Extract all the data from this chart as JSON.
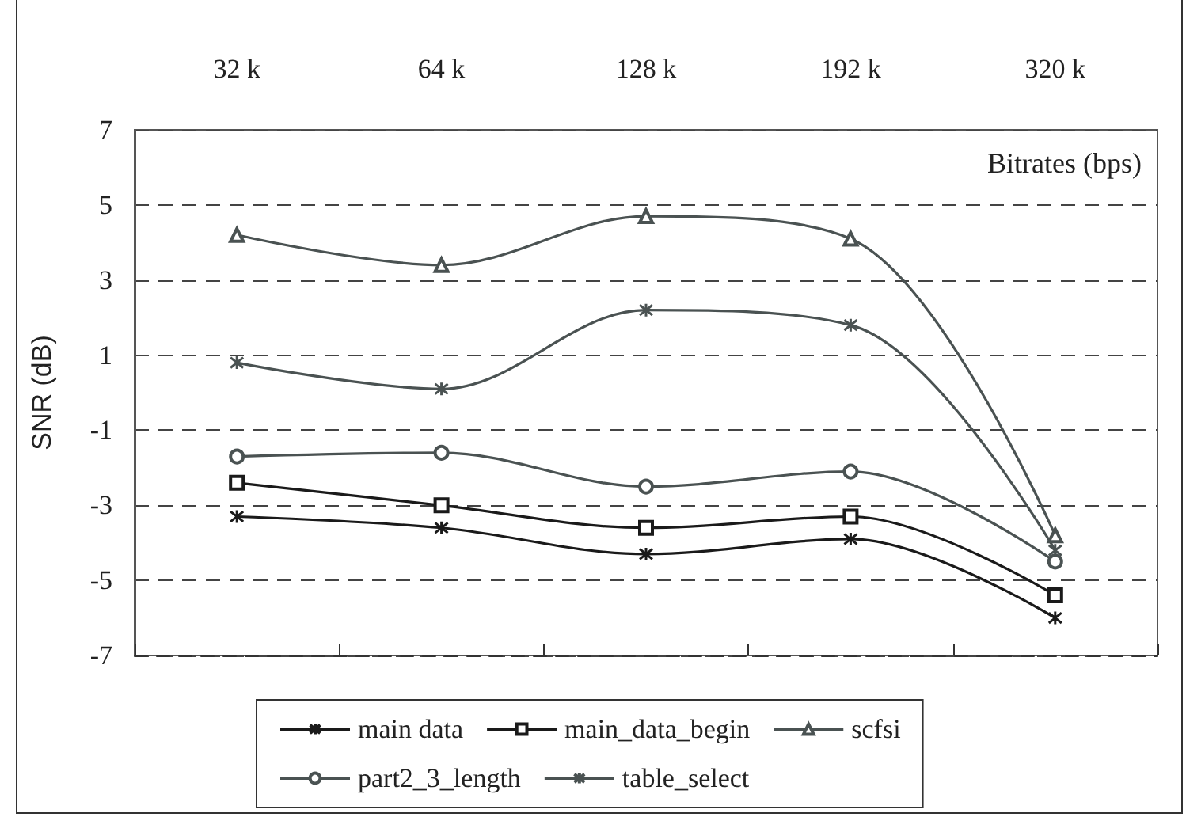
{
  "chart_data": {
    "type": "line",
    "xlabel": "Bitrates (bps)",
    "ylabel": "SNR (dB)",
    "categories": [
      "32 k",
      "64 k",
      "128 k",
      "192 k",
      "320 k"
    ],
    "ylim": [
      -7,
      7
    ],
    "yticks": [
      -7,
      -5,
      -3,
      -1,
      1,
      3,
      5,
      7
    ],
    "grid": "y",
    "legend": "bottom",
    "line_style": "solid",
    "series": [
      {
        "name": "main data",
        "color": "#1a1a1a",
        "marker": "cross",
        "values": [
          -3.3,
          -3.6,
          -4.3,
          -3.9,
          -6.0
        ]
      },
      {
        "name": "main_data_begin",
        "color": "#1a1a1a",
        "marker": "square",
        "values": [
          -2.4,
          -3.0,
          -3.6,
          -3.3,
          -5.4
        ]
      },
      {
        "name": "scfsi",
        "color": "#4a5252",
        "marker": "triangle",
        "values": [
          4.2,
          3.4,
          4.7,
          4.1,
          -3.8
        ]
      },
      {
        "name": "part2_3_length",
        "color": "#4a5252",
        "marker": "circle",
        "values": [
          -1.7,
          -1.6,
          -2.5,
          -2.1,
          -4.5
        ]
      },
      {
        "name": "table_select",
        "color": "#4a5252",
        "marker": "cross",
        "values": [
          0.8,
          0.1,
          2.2,
          1.8,
          -4.2
        ]
      }
    ]
  }
}
